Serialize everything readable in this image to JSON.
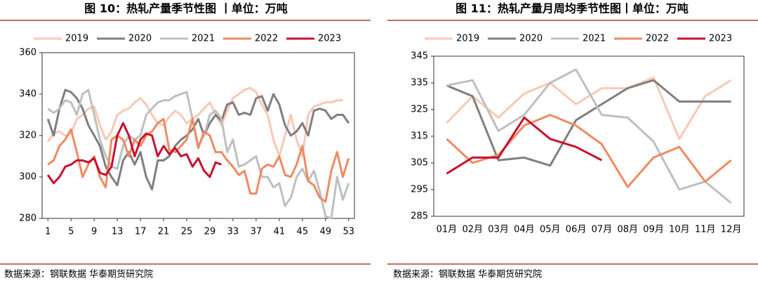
{
  "chart_data": [
    {
      "type": "line",
      "title": "图 10：热轧产量季节性图 丨单位：万吨",
      "source": "数据来源：钢联数据 华泰期货研究院",
      "x": [
        1,
        2,
        3,
        4,
        5,
        6,
        7,
        8,
        9,
        10,
        11,
        12,
        13,
        14,
        15,
        16,
        17,
        18,
        19,
        20,
        21,
        22,
        23,
        24,
        25,
        26,
        27,
        28,
        29,
        30,
        31,
        32,
        33,
        34,
        35,
        36,
        37,
        38,
        39,
        40,
        41,
        42,
        43,
        44,
        45,
        46,
        47,
        48,
        49,
        50,
        51,
        52,
        53
      ],
      "xlim": [
        0,
        54
      ],
      "xticks": [
        1,
        5,
        9,
        13,
        17,
        21,
        25,
        29,
        33,
        37,
        41,
        45,
        49,
        53
      ],
      "ylim": [
        280,
        360
      ],
      "yticks": [
        280,
        300,
        320,
        340,
        360
      ],
      "series": [
        {
          "name": "2019",
          "color": "#f8c9b4",
          "values": [
            317,
            321,
            322,
            320,
            321,
            328,
            330,
            333,
            334,
            325,
            318,
            322,
            330,
            332,
            333,
            336,
            338,
            335,
            330,
            326,
            325,
            329,
            332,
            330,
            326,
            328,
            330,
            333,
            336,
            330,
            325,
            332,
            338,
            340,
            342,
            343,
            341,
            335,
            330,
            318,
            310,
            320,
            330,
            318,
            310,
            330,
            334,
            335,
            336,
            336,
            337,
            337,
            null
          ]
        },
        {
          "name": "2020",
          "color": "#7f7f7f",
          "values": [
            328,
            320,
            333,
            342,
            341,
            338,
            333,
            325,
            320,
            315,
            305,
            300,
            296,
            308,
            312,
            306,
            312,
            300,
            294,
            308,
            308,
            310,
            315,
            318,
            320,
            323,
            328,
            320,
            326,
            330,
            327,
            335,
            336,
            330,
            331,
            330,
            338,
            339,
            332,
            340,
            335,
            325,
            320,
            322,
            326,
            320,
            332,
            333,
            332,
            328,
            330,
            330,
            326
          ]
        },
        {
          "name": "2021",
          "color": "#bfbfbf",
          "values": [
            333,
            331,
            333,
            337,
            336,
            330,
            340,
            342,
            330,
            318,
            310,
            305,
            304,
            315,
            320,
            318,
            320,
            330,
            333,
            336,
            337,
            337,
            339,
            340,
            341,
            328,
            315,
            320,
            330,
            332,
            328,
            312,
            318,
            305,
            306,
            308,
            310,
            300,
            300,
            295,
            297,
            286,
            290,
            300,
            304,
            298,
            303,
            293,
            281,
            280,
            300,
            289,
            297
          ]
        },
        {
          "name": "2022",
          "color": "#f08a60",
          "values": [
            306,
            308,
            315,
            318,
            323,
            312,
            300,
            306,
            310,
            300,
            295,
            318,
            320,
            318,
            310,
            318,
            315,
            320,
            322,
            326,
            328,
            313,
            312,
            315,
            318,
            328,
            314,
            322,
            320,
            312,
            312,
            308,
            305,
            301,
            303,
            292,
            292,
            304,
            306,
            305,
            310,
            301,
            300,
            306,
            315,
            298,
            296,
            290,
            288,
            303,
            312,
            300,
            309
          ]
        },
        {
          "name": "2023",
          "color": "#c8102e",
          "values": [
            301,
            297,
            300,
            305,
            306,
            308,
            308,
            307,
            309,
            302,
            301,
            305,
            320,
            326,
            320,
            310,
            318,
            321,
            320,
            310,
            315,
            311,
            314,
            310,
            311,
            305,
            309,
            303,
            300,
            307,
            306,
            null,
            null,
            null,
            null,
            null,
            null,
            null,
            null,
            null,
            null,
            null,
            null,
            null,
            null,
            null,
            null,
            null,
            null,
            null,
            null,
            null,
            null
          ]
        }
      ]
    },
    {
      "type": "line",
      "title": "图 11：热轧产量月周均季节性图丨单位：万吨",
      "source": "数据来源：钢联数据 华泰期货研究院",
      "categories": [
        "01月",
        "02月",
        "03月",
        "04月",
        "05月",
        "06月",
        "07月",
        "08月",
        "09月",
        "10月",
        "11月",
        "12月"
      ],
      "ylim": [
        285,
        345
      ],
      "yticks": [
        285,
        295,
        305,
        315,
        325,
        335,
        345
      ],
      "series": [
        {
          "name": "2019",
          "color": "#f8c9b4",
          "values": [
            320,
            330,
            322,
            331,
            335,
            327,
            333,
            333,
            337,
            314,
            330,
            336
          ]
        },
        {
          "name": "2020",
          "color": "#7f7f7f",
          "values": [
            334,
            330,
            306,
            307,
            304,
            321,
            327,
            333,
            336,
            328,
            328,
            328
          ]
        },
        {
          "name": "2021",
          "color": "#bfbfbf",
          "values": [
            334,
            336,
            317,
            323,
            335,
            340,
            323,
            322,
            313,
            295,
            298,
            290
          ]
        },
        {
          "name": "2022",
          "color": "#f08a60",
          "values": [
            314,
            305,
            308,
            319,
            323,
            319,
            312,
            296,
            307,
            311,
            298,
            306
          ]
        },
        {
          "name": "2023",
          "color": "#c8102e",
          "values": [
            301,
            307,
            307,
            322,
            314,
            311,
            306,
            null,
            null,
            null,
            null,
            null
          ]
        }
      ]
    }
  ]
}
